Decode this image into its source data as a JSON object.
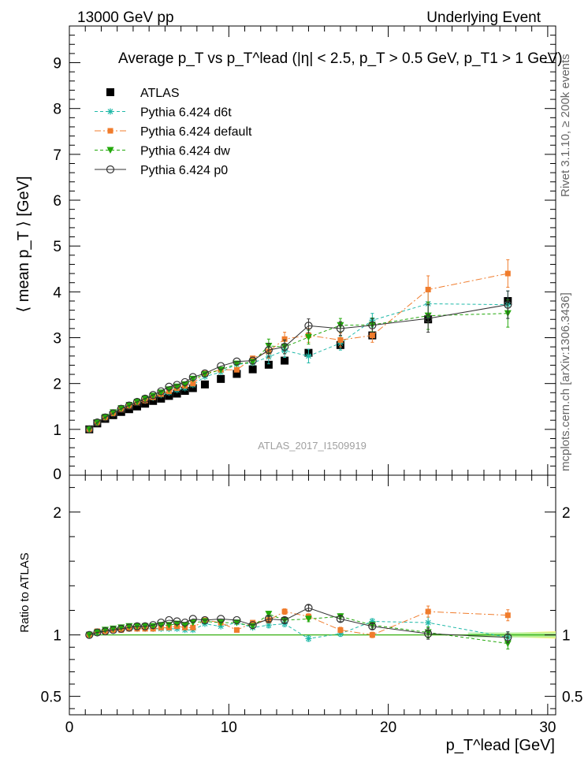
{
  "header": {
    "left": "13000 GeV pp",
    "right": "Underlying Event"
  },
  "side_labels": {
    "top": "Rivet 3.1.10, ≥ 200k events",
    "bottom": "mcplots.cern.ch [arXiv:1306.3436]"
  },
  "analysis_id": "ATLAS_2017_I1509919",
  "chart_data": [
    {
      "panel": "main",
      "type": "scatter",
      "title": "Average p_T vs p_T^lead (|η| < 2.5, p_T > 0.5 GeV, p_T1 > 1 GeV)",
      "ylabel": "⟨ mean p_T ⟩ [GeV]",
      "xlim": [
        0,
        30.5
      ],
      "ylim": [
        0,
        9.8
      ],
      "yticks": [
        "1",
        "2",
        "3",
        "4",
        "5",
        "6",
        "7",
        "8",
        "9"
      ],
      "legend_position": "top-left",
      "x": [
        1.25,
        1.75,
        2.25,
        2.75,
        3.25,
        3.75,
        4.25,
        4.75,
        5.25,
        5.75,
        6.25,
        6.75,
        7.25,
        7.75,
        8.5,
        9.5,
        10.5,
        11.5,
        12.5,
        13.5,
        15.0,
        17.0,
        19.0,
        22.5,
        27.5
      ],
      "series": [
        {
          "name": "ATLAS",
          "color": "#000000",
          "marker": "square",
          "y": [
            1.0,
            1.13,
            1.23,
            1.31,
            1.38,
            1.44,
            1.5,
            1.56,
            1.62,
            1.67,
            1.73,
            1.78,
            1.84,
            1.9,
            1.98,
            2.1,
            2.21,
            2.31,
            2.41,
            2.5,
            2.67,
            2.84,
            3.05,
            3.4,
            3.8
          ]
        },
        {
          "name": "Pythia 6.424 d6t",
          "color": "#1fb8a8",
          "marker": "star",
          "dash": "4,3",
          "y": [
            1.0,
            1.16,
            1.27,
            1.36,
            1.44,
            1.51,
            1.58,
            1.63,
            1.69,
            1.75,
            1.8,
            1.86,
            1.9,
            1.97,
            2.15,
            2.25,
            2.42,
            2.45,
            2.58,
            2.72,
            2.6,
            2.88,
            3.38,
            3.74,
            3.72
          ]
        },
        {
          "name": "Pythia 6.424 default",
          "color": "#f07c2c",
          "marker": "square-small",
          "dash": "8,3,2,3",
          "y": [
            1.0,
            1.15,
            1.26,
            1.35,
            1.43,
            1.5,
            1.58,
            1.63,
            1.7,
            1.77,
            1.83,
            1.9,
            1.95,
            2.0,
            2.22,
            2.3,
            2.3,
            2.55,
            2.7,
            2.97,
            3.05,
            2.95,
            3.05,
            4.05,
            4.4
          ]
        },
        {
          "name": "Pythia 6.424 dw",
          "color": "#22a80a",
          "marker": "triangle-down",
          "dash": "4,3",
          "y": [
            1.0,
            1.15,
            1.27,
            1.37,
            1.46,
            1.53,
            1.6,
            1.67,
            1.73,
            1.8,
            1.87,
            1.93,
            1.98,
            2.1,
            2.2,
            2.3,
            2.43,
            2.47,
            2.82,
            2.8,
            3.01,
            3.27,
            3.28,
            3.48,
            3.53
          ]
        },
        {
          "name": "Pythia 6.424 p0",
          "color": "#333333",
          "marker": "circle-open",
          "dash": "",
          "y": [
            1.0,
            1.15,
            1.26,
            1.35,
            1.45,
            1.52,
            1.6,
            1.67,
            1.75,
            1.83,
            1.93,
            1.97,
            2.03,
            2.14,
            2.22,
            2.38,
            2.48,
            2.5,
            2.73,
            2.8,
            3.26,
            3.2,
            3.27,
            3.42,
            3.72
          ]
        }
      ]
    },
    {
      "panel": "ratio",
      "type": "scatter",
      "xlabel": "p_T^lead [GeV]",
      "ylabel": "Ratio to ATLAS",
      "xlim": [
        0,
        30.5
      ],
      "ylim": [
        0.35,
        2.3
      ],
      "xticks": [
        "0",
        "10",
        "20",
        "30"
      ],
      "yticks": [
        "0.5",
        "1",
        "2"
      ],
      "x": [
        1.25,
        1.75,
        2.25,
        2.75,
        3.25,
        3.75,
        4.25,
        4.75,
        5.25,
        5.75,
        6.25,
        6.75,
        7.25,
        7.75,
        8.5,
        9.5,
        10.5,
        11.5,
        12.5,
        13.5,
        15.0,
        17.0,
        19.0,
        22.5,
        27.5
      ],
      "series": [
        {
          "name": "Pythia 6.424 d6t",
          "color": "#1fb8a8",
          "marker": "star",
          "dash": "4,3",
          "y": [
            1.0,
            1.02,
            1.04,
            1.04,
            1.05,
            1.05,
            1.05,
            1.05,
            1.05,
            1.05,
            1.05,
            1.05,
            1.04,
            1.04,
            1.09,
            1.07,
            1.1,
            1.06,
            1.08,
            1.09,
            0.97,
            1.01,
            1.11,
            1.1,
            0.98
          ]
        },
        {
          "name": "Pythia 6.424 default",
          "color": "#f07c2c",
          "marker": "square-small",
          "dash": "8,3,2,3",
          "y": [
            1.0,
            1.03,
            1.03,
            1.04,
            1.04,
            1.05,
            1.05,
            1.05,
            1.05,
            1.06,
            1.06,
            1.07,
            1.06,
            1.06,
            1.12,
            1.1,
            1.04,
            1.1,
            1.12,
            1.19,
            1.15,
            1.04,
            1.0,
            1.19,
            1.16
          ]
        },
        {
          "name": "Pythia 6.424 dw",
          "color": "#22a80a",
          "marker": "triangle-down",
          "dash": "4,3",
          "y": [
            1.0,
            1.02,
            1.04,
            1.05,
            1.06,
            1.07,
            1.07,
            1.07,
            1.07,
            1.08,
            1.08,
            1.09,
            1.08,
            1.1,
            1.11,
            1.1,
            1.1,
            1.07,
            1.17,
            1.12,
            1.13,
            1.15,
            1.08,
            1.02,
            0.93
          ]
        },
        {
          "name": "Pythia 6.424 p0",
          "color": "#333333",
          "marker": "circle-open",
          "dash": "",
          "y": [
            1.0,
            1.02,
            1.03,
            1.04,
            1.05,
            1.06,
            1.07,
            1.07,
            1.08,
            1.1,
            1.12,
            1.11,
            1.1,
            1.13,
            1.12,
            1.13,
            1.12,
            1.08,
            1.13,
            1.12,
            1.22,
            1.13,
            1.07,
            1.01,
            0.98
          ]
        }
      ]
    }
  ]
}
